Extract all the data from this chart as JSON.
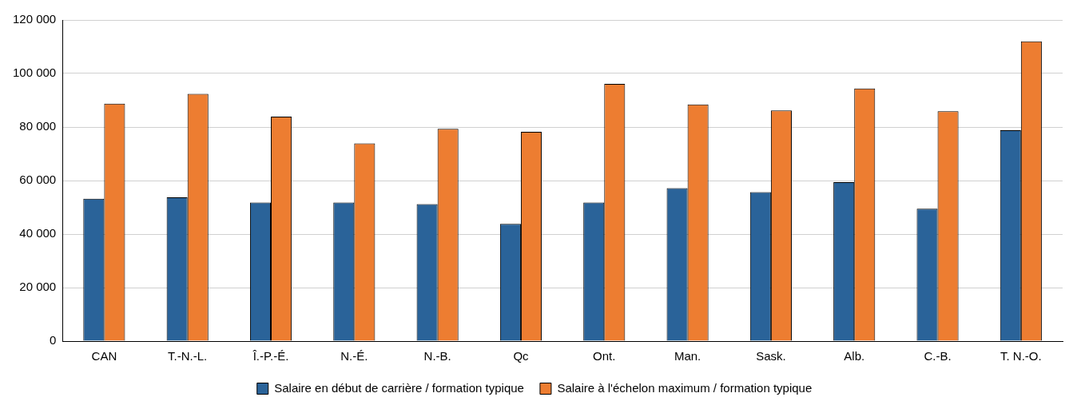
{
  "chart_data": {
    "type": "bar",
    "categories": [
      "CAN",
      "T.-N.-L.",
      "Î.-P.-É.",
      "N.-É.",
      "N.-B.",
      "Qc",
      "Ont.",
      "Man.",
      "Sask.",
      "Alb.",
      "C.-B.",
      "T. N.-O."
    ],
    "series": [
      {
        "name": "Salaire en début de carrière / formation typique",
        "color": "#2a6399",
        "values": [
          53200,
          53700,
          51800,
          51800,
          51200,
          43800,
          51800,
          57200,
          55700,
          59400,
          49500,
          78800
        ]
      },
      {
        "name": "Salaire à l'échelon maximum / formation typique",
        "color": "#ed7d31",
        "values": [
          88700,
          92400,
          83900,
          73900,
          79300,
          78200,
          96100,
          88400,
          86200,
          94400,
          85900,
          112000
        ]
      }
    ],
    "ylim": [
      0,
      120000
    ],
    "yticks": [
      {
        "value": 0,
        "label": "0"
      },
      {
        "value": 20000,
        "label": "20 000"
      },
      {
        "value": 40000,
        "label": "40 000"
      },
      {
        "value": 60000,
        "label": "60 000"
      },
      {
        "value": 80000,
        "label": "80 000"
      },
      {
        "value": 100000,
        "label": "100 000"
      },
      {
        "value": 120000,
        "label": "120 000"
      }
    ],
    "grid": "y",
    "legend": "bottom"
  }
}
